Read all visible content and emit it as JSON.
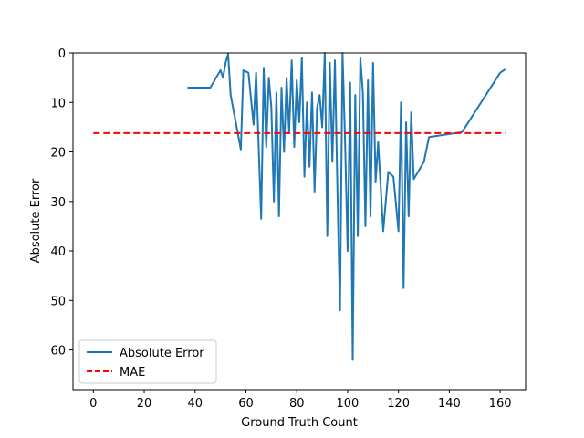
{
  "chart_data": {
    "type": "line",
    "title": "",
    "xlabel": "Ground Truth Count",
    "ylabel": "Absolute Error",
    "xlim": [
      -8,
      170
    ],
    "ylim": [
      68,
      0
    ],
    "y_inverted": true,
    "xticks": [
      0,
      20,
      40,
      60,
      80,
      100,
      120,
      140,
      160
    ],
    "yticks": [
      0,
      10,
      20,
      30,
      40,
      50,
      60
    ],
    "grid": false,
    "legend_position": "lower-left",
    "series": [
      {
        "name": "Absolute Error",
        "color": "#1f77b4",
        "style": "solid",
        "x": [
          37,
          46,
          50,
          51,
          52,
          53,
          54,
          58,
          59,
          61,
          63,
          64,
          66,
          67,
          68,
          69,
          70,
          71,
          72,
          73,
          74,
          75,
          76,
          77,
          78,
          79,
          80,
          81,
          82,
          83,
          84,
          85,
          86,
          87,
          88,
          89,
          90,
          91,
          92,
          93,
          94,
          95,
          96,
          97,
          98,
          99,
          100,
          101,
          102,
          103,
          104,
          105,
          106,
          107,
          108,
          109,
          110,
          111,
          112,
          114,
          116,
          118,
          120,
          121,
          122,
          123,
          124,
          125,
          126,
          130,
          132,
          145,
          160,
          162
        ],
        "y": [
          7,
          7,
          3.5,
          5,
          2,
          0.2,
          8.5,
          19.5,
          3.5,
          4,
          14.5,
          4,
          33.5,
          3,
          19,
          5,
          11,
          30,
          8,
          33,
          7,
          20,
          5,
          16,
          1.5,
          19,
          5.5,
          14,
          1,
          25,
          10,
          23,
          8,
          28,
          11,
          8.5,
          15,
          0,
          37,
          2,
          22,
          1.5,
          28,
          52,
          0,
          18,
          40,
          6,
          62,
          8.5,
          37,
          1,
          8,
          35,
          5.5,
          33,
          2,
          26,
          18,
          36,
          24,
          25,
          36,
          10,
          47.5,
          14,
          33,
          12,
          25.5,
          22,
          17,
          16,
          4,
          3.3
        ]
      },
      {
        "name": "MAE",
        "color": "#ff0000",
        "style": "dashed",
        "x": [
          0,
          162
        ],
        "y": [
          16.2,
          16.2
        ]
      }
    ]
  }
}
